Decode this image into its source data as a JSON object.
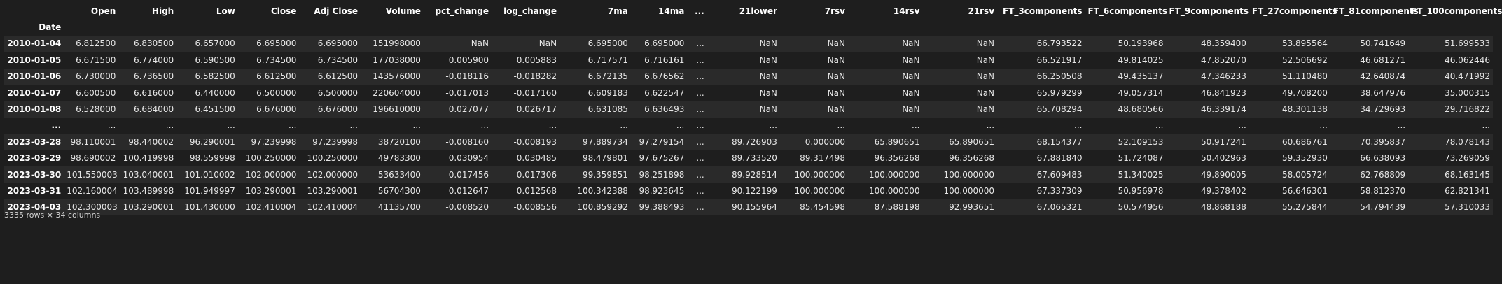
{
  "columns": [
    "",
    "Open",
    "High",
    "Low",
    "Close",
    "Adj Close",
    "Volume",
    "pct_change",
    "log_change",
    "7ma",
    "14ma",
    "...",
    "21lower",
    "7rsv",
    "14rsv",
    "21rsv",
    "FT_3components",
    "FT_6components",
    "FT_9components",
    "FT_27components",
    "FT_81components",
    "FT_100components"
  ],
  "index_name": "Date",
  "rows": [
    [
      "2010-01-04",
      "6.812500",
      "6.830500",
      "6.657000",
      "6.695000",
      "6.695000",
      "151998000",
      "NaN",
      "NaN",
      "6.695000",
      "6.695000",
      "...",
      "NaN",
      "NaN",
      "NaN",
      "NaN",
      "66.793522",
      "50.193968",
      "48.359400",
      "53.895564",
      "50.741649",
      "51.699533"
    ],
    [
      "2010-01-05",
      "6.671500",
      "6.774000",
      "6.590500",
      "6.734500",
      "6.734500",
      "177038000",
      "0.005900",
      "0.005883",
      "6.717571",
      "6.716161",
      "...",
      "NaN",
      "NaN",
      "NaN",
      "NaN",
      "66.521917",
      "49.814025",
      "47.852070",
      "52.506692",
      "46.681271",
      "46.062446"
    ],
    [
      "2010-01-06",
      "6.730000",
      "6.736500",
      "6.582500",
      "6.612500",
      "6.612500",
      "143576000",
      "-0.018116",
      "-0.018282",
      "6.672135",
      "6.676562",
      "...",
      "NaN",
      "NaN",
      "NaN",
      "NaN",
      "66.250508",
      "49.435137",
      "47.346233",
      "51.110480",
      "42.640874",
      "40.471992"
    ],
    [
      "2010-01-07",
      "6.600500",
      "6.616000",
      "6.440000",
      "6.500000",
      "6.500000",
      "220604000",
      "-0.017013",
      "-0.017160",
      "6.609183",
      "6.622547",
      "...",
      "NaN",
      "NaN",
      "NaN",
      "NaN",
      "65.979299",
      "49.057314",
      "46.841923",
      "49.708200",
      "38.647976",
      "35.000315"
    ],
    [
      "2010-01-08",
      "6.528000",
      "6.684000",
      "6.451500",
      "6.676000",
      "6.676000",
      "196610000",
      "0.027077",
      "0.026717",
      "6.631085",
      "6.636493",
      "...",
      "NaN",
      "NaN",
      "NaN",
      "NaN",
      "65.708294",
      "48.680566",
      "46.339174",
      "48.301138",
      "34.729693",
      "29.716822"
    ],
    [
      "...",
      "...",
      "...",
      "...",
      "...",
      "...",
      "...",
      "...",
      "...",
      "...",
      "...",
      "...",
      "...",
      "...",
      "...",
      "...",
      "...",
      "...",
      "...",
      "...",
      "...",
      "..."
    ],
    [
      "2023-03-28",
      "98.110001",
      "98.440002",
      "96.290001",
      "97.239998",
      "97.239998",
      "38720100",
      "-0.008160",
      "-0.008193",
      "97.889734",
      "97.279154",
      "...",
      "89.726903",
      "0.000000",
      "65.890651",
      "65.890651",
      "68.154377",
      "52.109153",
      "50.917241",
      "60.686761",
      "70.395837",
      "78.078143"
    ],
    [
      "2023-03-29",
      "98.690002",
      "100.419998",
      "98.559998",
      "100.250000",
      "100.250000",
      "49783300",
      "0.030954",
      "0.030485",
      "98.479801",
      "97.675267",
      "...",
      "89.733520",
      "89.317498",
      "96.356268",
      "96.356268",
      "67.881840",
      "51.724087",
      "50.402963",
      "59.352930",
      "66.638093",
      "73.269059"
    ],
    [
      "2023-03-30",
      "101.550003",
      "103.040001",
      "101.010002",
      "102.000000",
      "102.000000",
      "53633400",
      "0.017456",
      "0.017306",
      "99.359851",
      "98.251898",
      "...",
      "89.928514",
      "100.000000",
      "100.000000",
      "100.000000",
      "67.609483",
      "51.340025",
      "49.890005",
      "58.005724",
      "62.768809",
      "68.163145"
    ],
    [
      "2023-03-31",
      "102.160004",
      "103.489998",
      "101.949997",
      "103.290001",
      "103.290001",
      "56704300",
      "0.012647",
      "0.012568",
      "100.342388",
      "98.923645",
      "...",
      "90.122199",
      "100.000000",
      "100.000000",
      "100.000000",
      "67.337309",
      "50.956978",
      "49.378402",
      "56.646301",
      "58.812370",
      "62.821341"
    ],
    [
      "2023-04-03",
      "102.300003",
      "103.290001",
      "101.430000",
      "102.410004",
      "102.410004",
      "41135700",
      "-0.008520",
      "-0.008556",
      "100.859292",
      "99.388493",
      "...",
      "90.155964",
      "85.454598",
      "87.588198",
      "92.993651",
      "67.065321",
      "50.574956",
      "48.868188",
      "55.275844",
      "54.794439",
      "57.310033"
    ]
  ],
  "shape_text": "3335 rows × 34 columns"
}
